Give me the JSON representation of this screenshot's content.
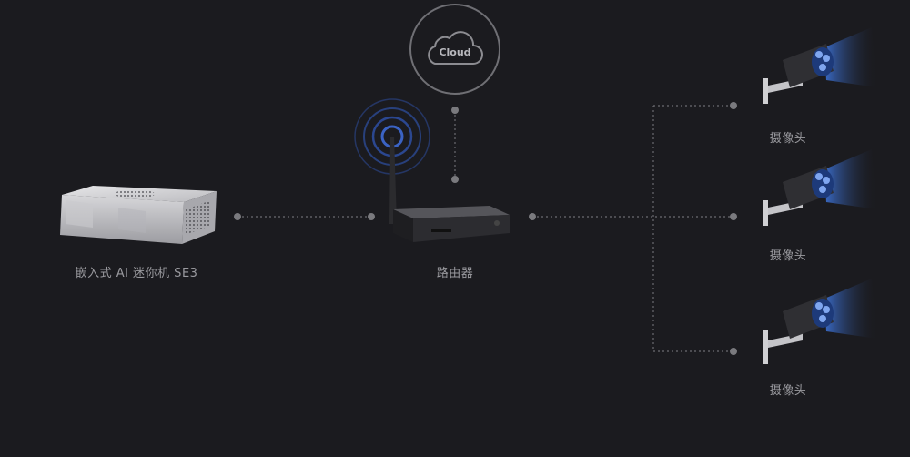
{
  "cloud": {
    "label": "Cloud"
  },
  "devices": {
    "mini_pc": {
      "label": "嵌入式 AI 迷你机 SE3"
    },
    "router": {
      "label": "路由器"
    },
    "cameras": [
      {
        "label": "摄像头"
      },
      {
        "label": "摄像头"
      },
      {
        "label": "摄像头"
      }
    ]
  },
  "colors": {
    "background": "#1b1b1f",
    "connector": "#6b6b70",
    "node": "#7a7a7e",
    "label": "#9a9a9f",
    "wifi_signal": "#2e4d9c",
    "camera_light": "#3b6fd1"
  }
}
